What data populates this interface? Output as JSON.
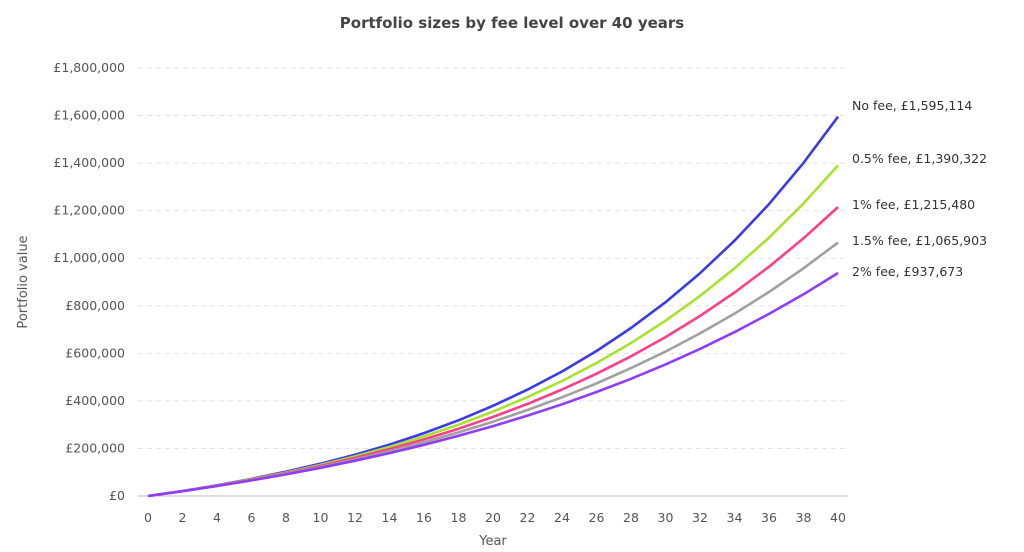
{
  "chart_data": {
    "type": "line",
    "title": "Portfolio sizes by fee level over 40 years",
    "xlabel": "Year",
    "ylabel": "Portfolio value",
    "xlim": [
      0,
      40
    ],
    "ylim": [
      0,
      1800000
    ],
    "grid": true,
    "x": [
      0,
      2,
      4,
      6,
      8,
      10,
      12,
      14,
      16,
      18,
      20,
      22,
      24,
      26,
      28,
      30,
      32,
      34,
      36,
      38,
      40
    ],
    "x_ticks": [
      "0",
      "2",
      "4",
      "6",
      "8",
      "10",
      "12",
      "14",
      "16",
      "18",
      "20",
      "22",
      "24",
      "26",
      "28",
      "30",
      "32",
      "34",
      "36",
      "38",
      "40"
    ],
    "y_ticks": [
      {
        "value": 0,
        "label": "£0"
      },
      {
        "value": 200000,
        "label": "£200,000"
      },
      {
        "value": 400000,
        "label": "£400,000"
      },
      {
        "value": 600000,
        "label": "£600,000"
      },
      {
        "value": 800000,
        "label": "£800,000"
      },
      {
        "value": 1000000,
        "label": "£1,000,000"
      },
      {
        "value": 1200000,
        "label": "£1,200,000"
      },
      {
        "value": 1400000,
        "label": "£1,400,000"
      },
      {
        "value": 1600000,
        "label": "£1,600,000"
      },
      {
        "value": 1800000,
        "label": "£1,800,000"
      }
    ],
    "series": [
      {
        "name": "No fee",
        "label": "No fee, £1,595,114",
        "color": "#3a3ae8",
        "values": [
          0,
          21234,
          45097,
          71906,
          102024,
          135817,
          173485,
          216024,
          264408,
          318531,
          379180,
          447274,
          523768,
          609762,
          706363,
          814886,
          936833,
          1073852,
          1227812,
          1400807,
          1595114
        ]
      },
      {
        "name": "0.5% fee",
        "label": "0.5% fee, £1,390,322",
        "color": "#a6e22e",
        "values": [
          0,
          20911,
          44147,
          70046,
          98838,
          130925,
          166654,
          206421,
          250683,
          299945,
          354774,
          415783,
          483720,
          559314,
          643461,
          737260,
          841494,
          957501,
          1086628,
          1230358,
          1390322
        ]
      },
      {
        "name": "1% fee",
        "label": "1% fee, £1,215,480",
        "color": "#ff3d8b",
        "values": [
          0,
          20627,
          43266,
          68341,
          95990,
          126458,
          160065,
          197097,
          237948,
          282966,
          332663,
          387400,
          447723,
          514260,
          587590,
          668450,
          757608,
          855895,
          964260,
          1083730,
          1215480
        ]
      },
      {
        "name": "1.5% fee",
        "label": "1.5% fee, £1,065,903",
        "color": "#a0a0a0",
        "values": [
          0,
          20360,
          42603,
          66901,
          93414,
          122383,
          154030,
          188555,
          226270,
          267455,
          312426,
          361553,
          415176,
          473746,
          537727,
          607474,
          683896,
          767197,
          858149,
          957471,
          1065903
        ]
      },
      {
        "name": "2% fee",
        "label": "2% fee, £937,673",
        "color": "#8f3cff",
        "values": [
          0,
          20130,
          41913,
          65452,
          90934,
          118464,
          148263,
          180506,
          215362,
          253057,
          293837,
          337946,
          385655,
          437263,
          493062,
          553428,
          618728,
          689334,
          765708,
          848325,
          937673
        ]
      }
    ]
  }
}
